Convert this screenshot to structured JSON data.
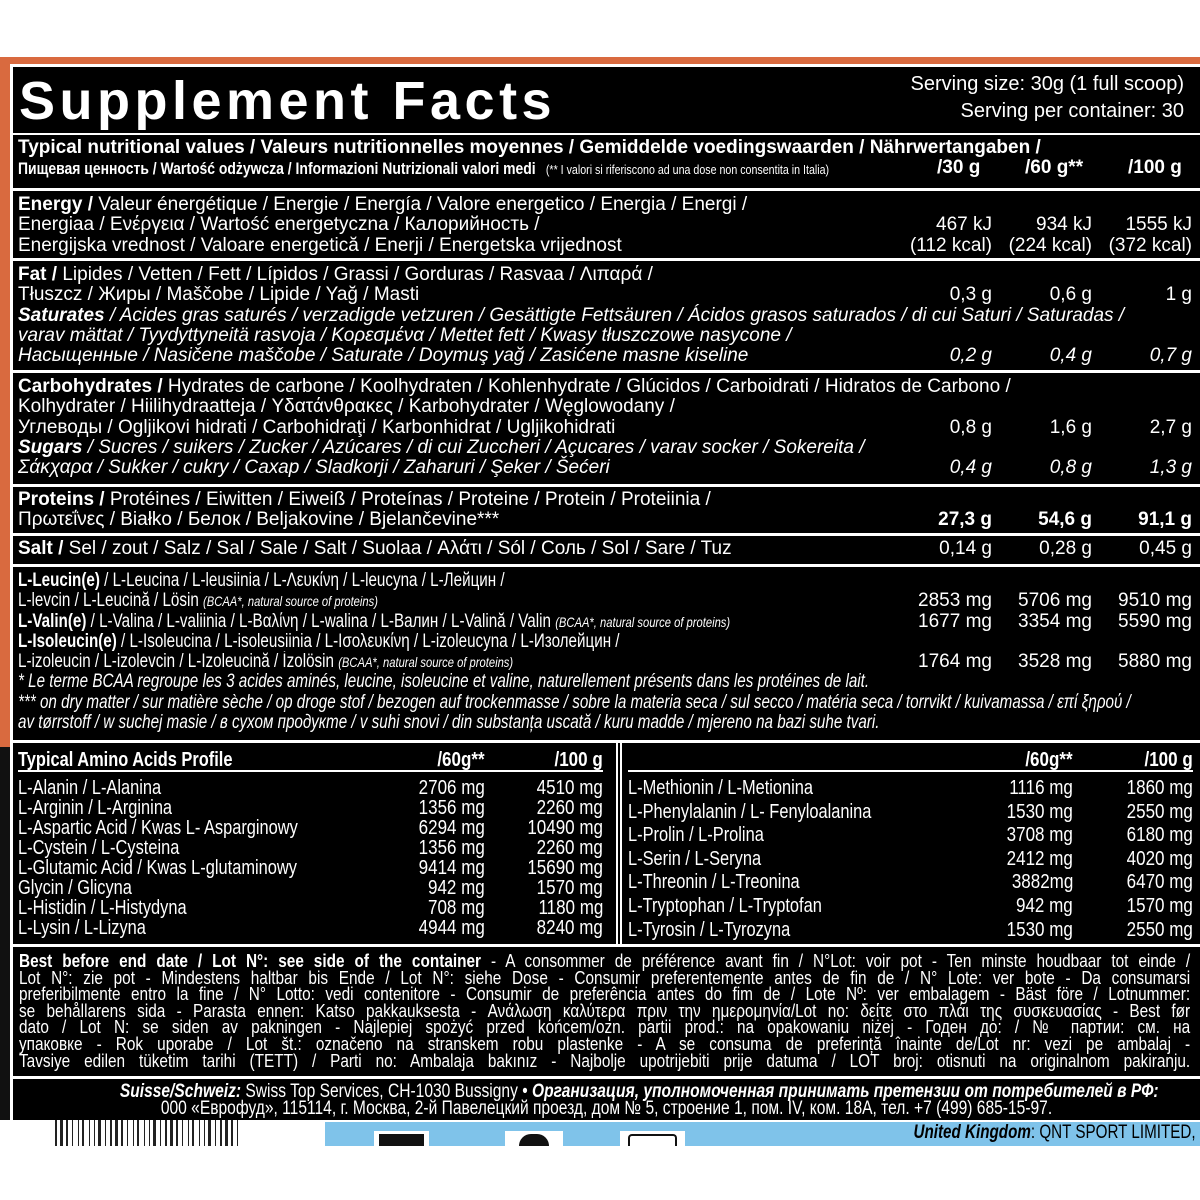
{
  "header": {
    "title": "Supplement Facts",
    "serving_size": "Serving size: 30g (1 full scoop)",
    "servings_per_container": "Serving per container: 30"
  },
  "table_header": {
    "line1": "Typical nutritional values  /  Valeurs nutritionnelles moyennes / Gemiddelde voedingswaarden / Nährwertangaben /",
    "line2": "Пищевая ценность / Wartość odżywcza / Informazioni Nutrizionali valori medi",
    "note": "(** I valori si riferiscono ad una dose non consentita in Italia)",
    "columns": [
      "/30 g",
      "/60 g**",
      "/100 g"
    ]
  },
  "nutrients": [
    {
      "name": "energy",
      "lines": [
        {
          "segs": [
            [
              "b",
              "Energy /"
            ],
            [
              "",
              "  Valeur énergétique / Energie / Energía / Valore energetico / Energia / Energi /"
            ]
          ]
        },
        {
          "segs": [
            [
              "",
              "Energiaa / Ενέργεια / Wartość energetyczna / Калорийность /"
            ]
          ],
          "vals": [
            "467 kJ",
            "934 kJ",
            "1555 kJ"
          ]
        },
        {
          "segs": [
            [
              "",
              "Energijska vrednost / Valoare energetică / Enerji / Energetska vrijednost"
            ]
          ],
          "vals": [
            "(112 kcal)",
            "(224 kcal)",
            "(372 kcal)"
          ]
        }
      ]
    },
    {
      "name": "fat",
      "lines": [
        {
          "segs": [
            [
              "b",
              "Fat /"
            ],
            [
              "",
              "  Lipides / Vetten / Fett / Lípidos  / Grassi / Gorduras / Rasvaa / Λιπαρά /"
            ]
          ]
        },
        {
          "segs": [
            [
              "",
              "Tłuszcz / Жиры / Maščobe / Lipide / Yağ / Masti"
            ]
          ],
          "vals": [
            "0,3 g",
            "0,6 g",
            "1 g"
          ]
        },
        {
          "segs": [
            [
              "b i",
              "Saturates"
            ],
            [
              "i",
              " / Acides gras saturés / verzadigde vetzuren / Gesättigte Fettsäuren / Ácidos grasos saturados / di cui Saturi / Saturadas /"
            ]
          ]
        },
        {
          "segs": [
            [
              "i",
              "varav mättat / Tyydyttyneitä rasvoja / Κορεσμένα / Mettet fett / Kwasy tłuszczowe nasycone /"
            ]
          ]
        },
        {
          "segs": [
            [
              "i",
              "Насыщенные / Nasičene maščobe / Saturate / Doymuş yağ / Zasićene masne kiseline"
            ]
          ],
          "vals": [
            "0,2 g",
            "0,4 g",
            "0,7 g"
          ],
          "vstyle": "i"
        }
      ]
    },
    {
      "name": "carbohydrates",
      "lines": [
        {
          "segs": [
            [
              "b",
              "Carbohydrates /"
            ],
            [
              "",
              " Hydrates de carbone / Koolhydraten / Kohlenhydrate / Glúcidos / Carboidrati / Hidratos de Carbono /"
            ]
          ]
        },
        {
          "segs": [
            [
              "",
              "Kolhydrater / Hiilihydraatteja / Υδατάνθρακες / Karbohydrater / Węglowodany /"
            ]
          ]
        },
        {
          "segs": [
            [
              "",
              "Углеводы / Ogljikovi hidrati / Carbohidraţi / Karbonhidrat / Ugljikohidrati"
            ]
          ],
          "vals": [
            "0,8 g",
            "1,6 g",
            "2,7 g"
          ]
        },
        {
          "segs": [
            [
              "b i",
              "Sugars"
            ],
            [
              "i",
              " / Sucres / suikers / Zucker / Azúcares / di cui Zuccheri / Açucares / varav socker / Sokereita /"
            ]
          ]
        },
        {
          "segs": [
            [
              "i",
              "Σάκχαρα / Sukker / cukry / Сахар / Sladkorji / Zaharuri / Şeker / Šećeri"
            ]
          ],
          "vals": [
            "0,4 g",
            "0,8 g",
            "1,3 g"
          ],
          "vstyle": "i"
        }
      ]
    },
    {
      "name": "proteins",
      "lines": [
        {
          "segs": [
            [
              "b",
              "Proteins /"
            ],
            [
              "",
              " Protéines / Eiwitten / Eiweiß / Proteínas  / Proteine / Protein / Proteiinia /"
            ]
          ]
        },
        {
          "segs": [
            [
              "",
              "Πρωτεΐνες / Białko / Белок / Beljakovine / Bjelančevine***"
            ]
          ],
          "vals": [
            "27,3 g",
            "54,6 g",
            "91,1 g"
          ],
          "vstyle": "b"
        }
      ]
    },
    {
      "name": "salt",
      "lines": [
        {
          "segs": [
            [
              "b",
              "Salt /"
            ],
            [
              "",
              " Sel / zout / Salz / Sal / Sale / Salt / Suolaa / Αλάτι / Sól / Соль / Sol / Sare / Tuz"
            ]
          ],
          "vals": [
            "0,14 g",
            "0,28 g",
            "0,45 g"
          ]
        }
      ]
    }
  ],
  "bcaa": {
    "lines": [
      {
        "segs": [
          [
            "b",
            "L-Leucin(e)"
          ],
          [
            "",
            " / L-Leucina / L-leusiinia / L-Λευκίνη / L-leucyna / L-Лейцин /"
          ]
        ]
      },
      {
        "segs": [
          [
            "",
            "L-levcin / L-Leucină / Lösin "
          ],
          [
            "sm",
            "(BCAA*, natural source of proteins)"
          ]
        ],
        "vals": [
          "2853 mg",
          "5706 mg",
          "9510 mg"
        ]
      },
      {
        "segs": [
          [
            "b",
            "L-Valin(e)"
          ],
          [
            "",
            " / L-Valina / L-valiinia / L-Βαλίνη / L-walina / L-Валин / L-Valină / Valin "
          ],
          [
            "sm",
            "(BCAA*, natural source of proteins)"
          ]
        ],
        "vals": [
          "1677 mg",
          "3354 mg",
          "5590 mg"
        ]
      },
      {
        "segs": [
          [
            "b",
            "L-Isoleucin(e)"
          ],
          [
            "",
            "  / L-Isoleucina / L-isoleusiinia / L-Ισολευκίνη / L-izoleucyna / L-Изолейцин /"
          ]
        ]
      },
      {
        "segs": [
          [
            "",
            "L-izoleucin / L-izolevcin / L-Izoleucină / İzolösin "
          ],
          [
            "sm",
            "(BCAA*, natural source of proteins)"
          ]
        ],
        "vals": [
          "1764 mg",
          "3528 mg",
          "5880 mg"
        ]
      },
      {
        "segs": [
          [
            "i",
            "* Le terme BCAA regroupe les 3 acides aminés, leucine, isoleucine et valine, naturellement présents dans les protéines de lait."
          ]
        ]
      },
      {
        "segs": [
          [
            "i",
            "*** on dry matter / sur matière sèche / op droge stof / bezogen auf trockenmasse / sobre la materia seca / sul secco / matéria seca / torrvikt / kuivamassa / επί ξηρού /"
          ]
        ]
      },
      {
        "segs": [
          [
            "i",
            "av tørrstoff / w suchej masie / в сухом продукте / v suhi snovi / din substanța uscată / kuru madde / mjereno na bazi suhe tvari."
          ]
        ]
      }
    ]
  },
  "amino_profile": {
    "title": "Typical Amino Acids Profile",
    "columns": [
      "/60g**",
      "/100 g"
    ],
    "left": [
      [
        "L-Alanin / L-Alanina",
        "2706 mg",
        "4510 mg"
      ],
      [
        "L-Arginin / L-Arginina",
        "1356 mg",
        "2260 mg"
      ],
      [
        "L-Aspartic Acid / Kwas  L- Asparginowy",
        "6294 mg",
        "10490 mg"
      ],
      [
        "L-Cystein / L-Cysteina",
        "1356 mg",
        "2260 mg"
      ],
      [
        "L-Glutamic Acid / Kwas L-glutaminowy",
        "9414 mg",
        "15690 mg"
      ],
      [
        "Glycin / Glicyna",
        "942 mg",
        "1570 mg"
      ],
      [
        "L-Histidin / L-Histydyna",
        "708 mg",
        "1180 mg"
      ],
      [
        "L-Lysin  / L-Lizyna",
        "4944 mg",
        "8240 mg"
      ]
    ],
    "right": [
      [
        "L-Methionin / L-Metionina",
        "1116 mg",
        "1860 mg"
      ],
      [
        "L-Phenylalanin  / L- Fenyloalanina",
        "1530 mg",
        "2550 mg"
      ],
      [
        "L-Prolin / L-Prolina",
        "3708 mg",
        "6180 mg"
      ],
      [
        "L-Serin / L-Seryna",
        "2412 mg",
        "4020 mg"
      ],
      [
        "L-Threonin / L-Treonina",
        "3882mg",
        "6470 mg"
      ],
      [
        "L-Tryptophan / L-Tryptofan",
        "942 mg",
        "1570 mg"
      ],
      [
        "L-Tyrosin / L-Tyrozyna",
        "1530 mg",
        "2550 mg"
      ]
    ]
  },
  "best_before": {
    "bold": "Best before end date / Lot N°: see side of the container",
    "lines": [
      " - A consommer de préférence avant fin / N°Lot: voir pot - Ten minste houdbaar tot einde /",
      "Lot N°: zie pot - Mindestens haltbar bis Ende / Lot N°: siehe Dose - Consumir preferentemente antes de fin de / N° Lote: ver bote - Da consumarsi",
      "preferibilmente entro la fine / N° Lotto: vedi contenitore - Consumir de preferência antes do fim de / Lote Nº: ver embalagem - Bäst före / Lotnummer:",
      "se behållarens sida - Parasta ennen: Katso pakkauksesta - Ανάλωση καλύτερα πριν την ημερομηνία/Lot no: δείτε στο πλάι της συσκευασίας - Best før",
      "dato / Lot N: se siden av pakningen - Najlepiej spożyć przed końcem/ozn. partii prod.: na opakowaniu niżej - Годен до: / №  партии: см. на",
      "упаковке - Rok uporabe / Lot št.: označeno na stranskem robu plastenke - A se consuma de preferință înainte de/Lot nr: vezi pe ambalaj -",
      "Tavsiye edilen tüketim tarihi (TETT) / Parti no: Ambalaja bakınız - Najbolje upotrijebiti prije datuma / LOT broj: otisnuti na originalnom pakiranju."
    ]
  },
  "address": {
    "line1_bold": "Suisse/Schweiz:",
    "line1_text": " Swiss Top Services, CH-1030 Bussigny • ",
    "line1_bold2": "Организация, уполномоченная принимать претензии от потребителей в РФ:",
    "line2": "000 «Еврофуд», 115114, г. Москва, 2-й Павелецкий проезд, дом № 5, строение 1, пом. IV, ком. 18А, тел. +7 (499) 685-15-97."
  },
  "footer": {
    "uk_bold": "United Kingdom",
    "uk_text": ": QNT SPORT LIMITED,"
  },
  "colors": {
    "label_bg": "#000000",
    "border_orange": "#d96a3f",
    "strip_blue": "#7fc3ea",
    "text": "#ffffff"
  }
}
